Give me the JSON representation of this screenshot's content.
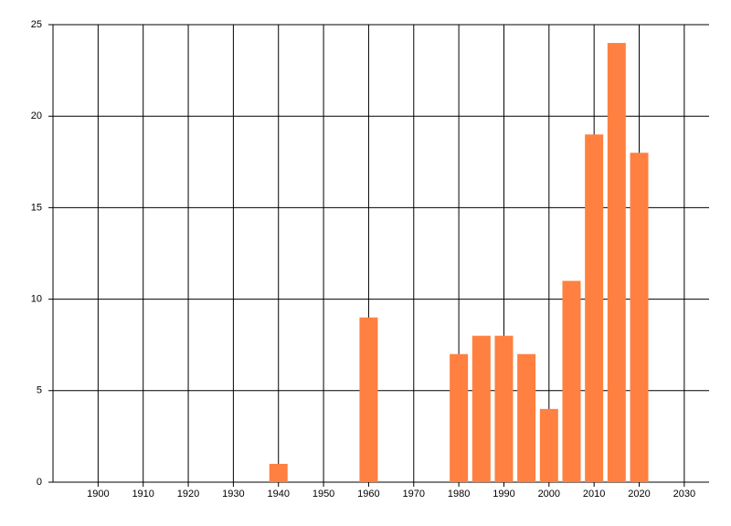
{
  "chart_data": {
    "type": "bar",
    "x": [
      1940,
      1960,
      1980,
      1985,
      1990,
      1995,
      2000,
      2005,
      2010,
      2015,
      2020
    ],
    "values": [
      1,
      9,
      7,
      8,
      8,
      7,
      4,
      11,
      19,
      24,
      18
    ],
    "color": "#ff8040",
    "xlim": [
      1890,
      2035.5
    ],
    "xticks": [
      1900,
      1910,
      1920,
      1930,
      1940,
      1950,
      1960,
      1970,
      1980,
      1990,
      2000,
      2010,
      2020,
      2030
    ],
    "ylim": [
      0,
      25
    ],
    "yticks": [
      0,
      5,
      10,
      15,
      20,
      25
    ],
    "grid": true
  }
}
